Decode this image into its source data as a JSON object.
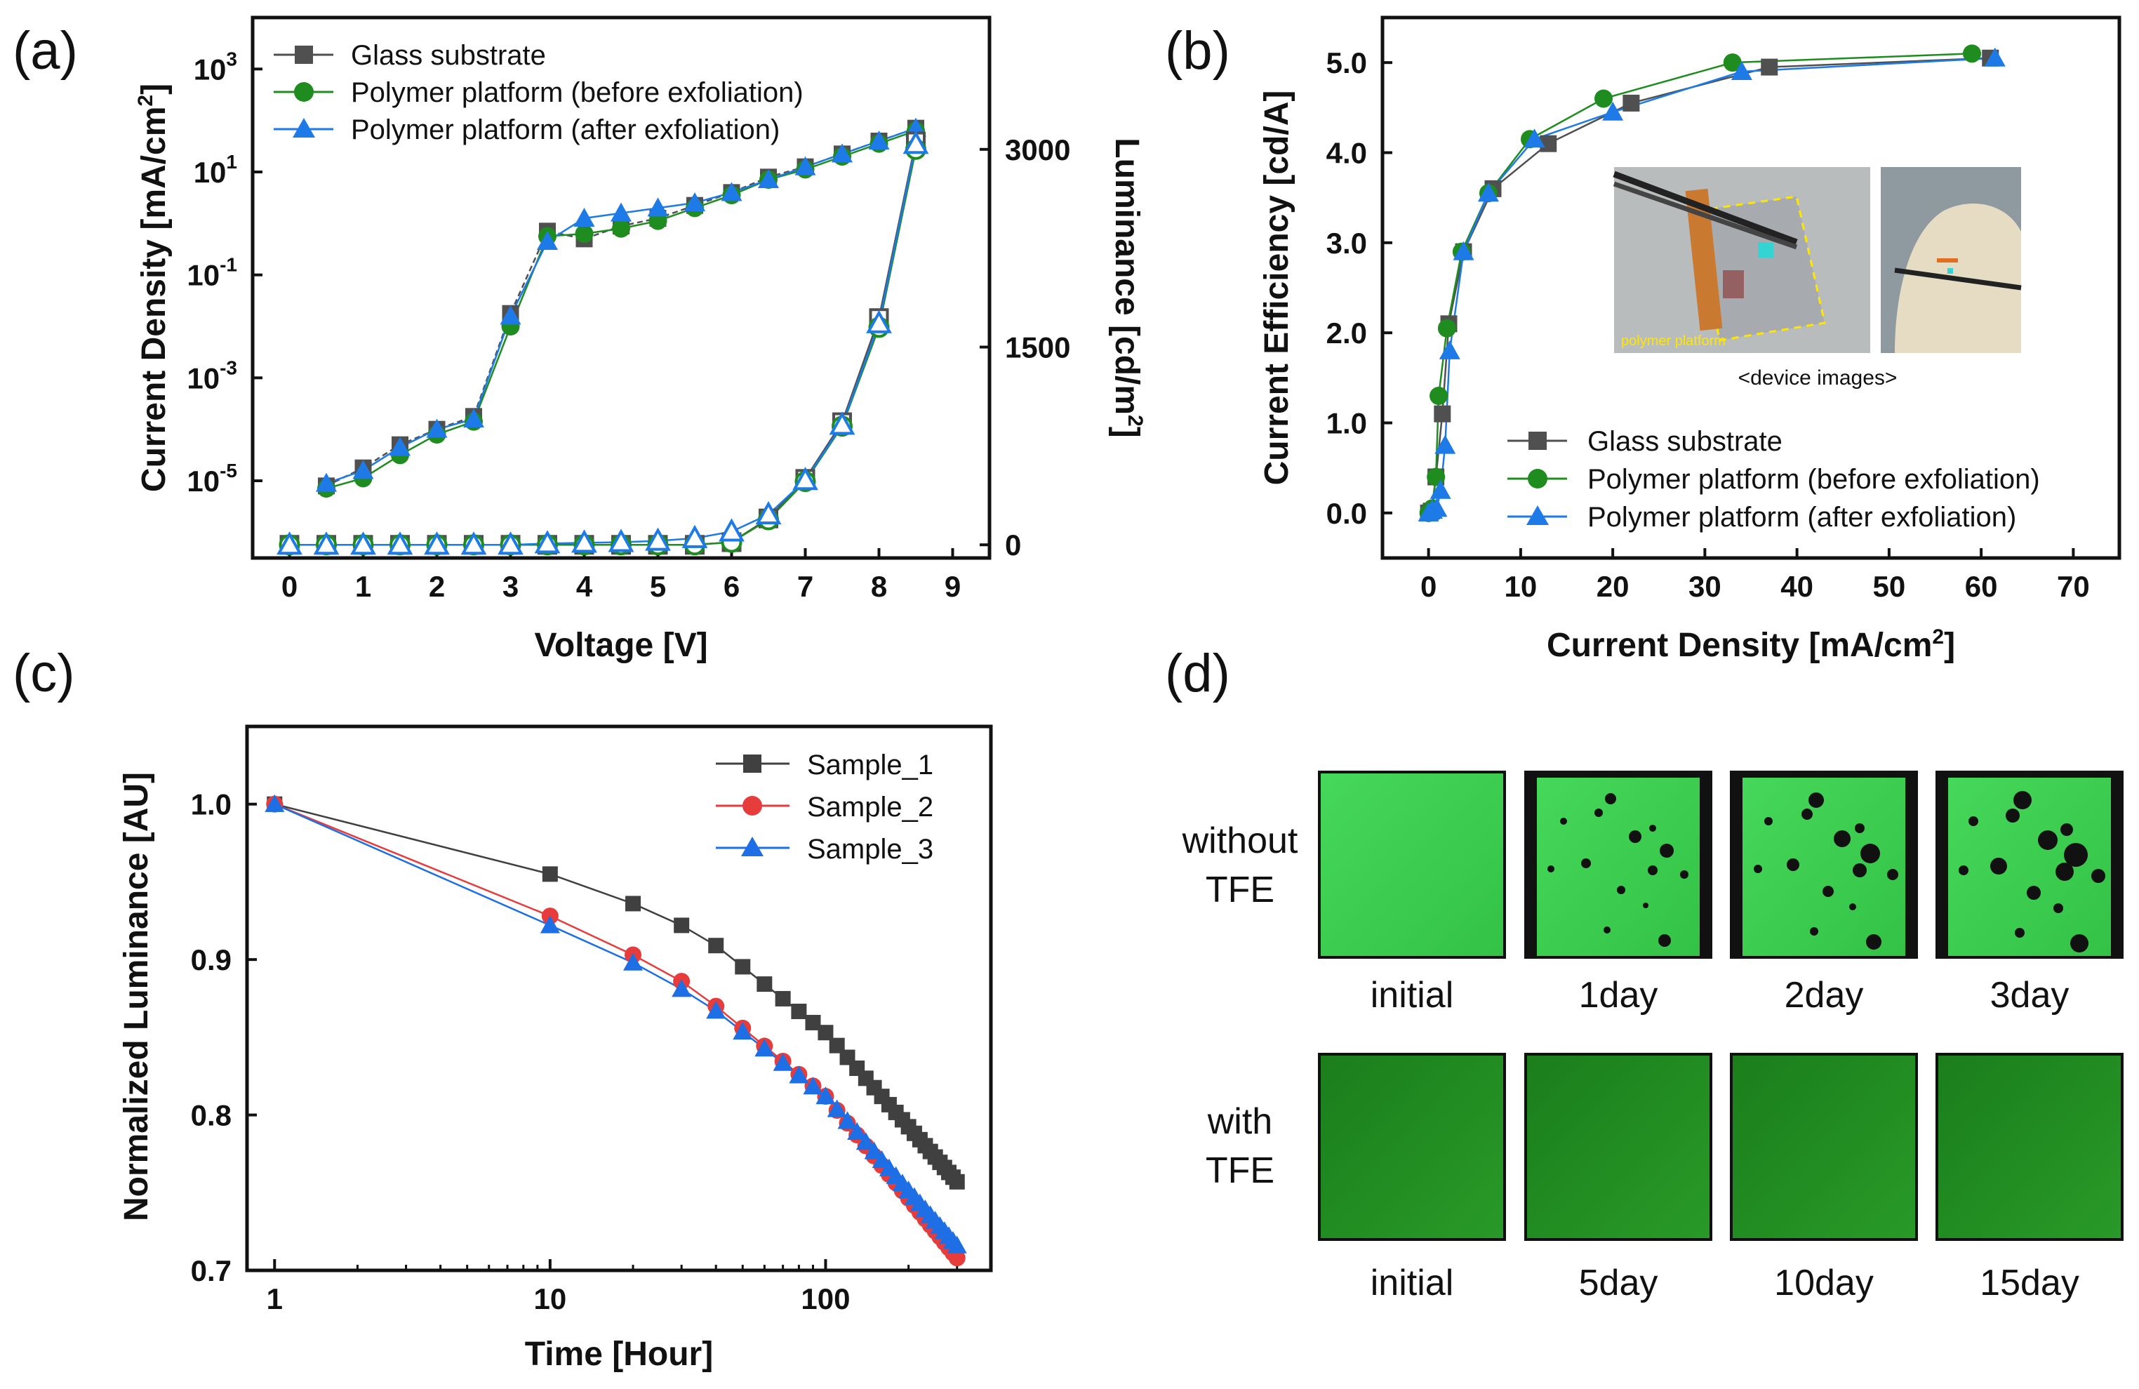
{
  "colors": {
    "glass": "#505050",
    "before": "#1e8c1e",
    "after": "#1e7ae6",
    "sample1": "#404040",
    "sample2": "#e63c3c",
    "sample3": "#1e6ee6",
    "green_bright": "#3ccf50",
    "green_dark": "#1f8a1f"
  },
  "panels": {
    "a_label": "(a)",
    "b_label": "(b)",
    "c_label": "(c)",
    "d_label": "(d)"
  },
  "chart_data": [
    {
      "id": "a",
      "type": "line",
      "title": "",
      "xlabel": "Voltage [V]",
      "ylabel": "Current Density [mA/cm²]",
      "y2label": "Luminance [cd/m²]",
      "xlim": [
        -0.5,
        9.5
      ],
      "x_ticks": [
        "0",
        "1",
        "2",
        "3",
        "4",
        "5",
        "6",
        "7",
        "8",
        "9"
      ],
      "y_log_ticks": [
        {
          "exp": 3,
          "label": "10",
          "sup": "3"
        },
        {
          "exp": 1,
          "label": "10",
          "sup": "1"
        },
        {
          "exp": -1,
          "label": "10",
          "sup": "-1"
        },
        {
          "exp": -3,
          "label": "10",
          "sup": "-3"
        },
        {
          "exp": -5,
          "label": "10",
          "sup": "-5"
        }
      ],
      "ylim_log10": [
        -6.5,
        4.0
      ],
      "y2_ticks": [
        "3000",
        "1500",
        "0"
      ],
      "y2lim": [
        -100,
        4000
      ],
      "legend": [
        "Glass substrate",
        "Polymer platform (before exfoliation)",
        "Polymer platform (after exfoliation)"
      ],
      "series_j": [
        {
          "name": "Glass substrate",
          "marker": "square",
          "x": [
            0.5,
            1,
            1.5,
            2,
            2.5,
            3,
            3.5,
            4,
            4.5,
            5,
            5.5,
            6,
            6.5,
            7,
            7.5,
            8,
            8.5
          ],
          "log10y": [
            -5.1,
            -4.75,
            -4.3,
            -4.0,
            -3.75,
            -1.75,
            -0.15,
            -0.3,
            -0.05,
            0.1,
            0.35,
            0.6,
            0.9,
            1.1,
            1.35,
            1.6,
            1.85
          ]
        },
        {
          "name": "Polymer platform (before exfoliation)",
          "marker": "circle",
          "x": [
            0.5,
            1,
            1.5,
            2,
            2.5,
            3,
            3.5,
            4,
            4.5,
            5,
            5.5,
            6,
            6.5,
            7,
            7.5,
            8,
            8.5
          ],
          "log10y": [
            -5.15,
            -4.95,
            -4.5,
            -4.1,
            -3.85,
            -2.0,
            -0.25,
            -0.2,
            -0.1,
            0.05,
            0.3,
            0.55,
            0.85,
            1.05,
            1.3,
            1.55,
            1.8
          ]
        },
        {
          "name": "Polymer platform (after exfoliation)",
          "marker": "triangle",
          "x": [
            0.5,
            1,
            1.5,
            2,
            2.5,
            3,
            3.5,
            4,
            4.5,
            5,
            5.5,
            6,
            6.5,
            7,
            7.5,
            8,
            8.5
          ],
          "log10y": [
            -5.05,
            -4.8,
            -4.35,
            -4.0,
            -3.8,
            -1.8,
            -0.35,
            0.1,
            0.2,
            0.3,
            0.4,
            0.6,
            0.85,
            1.1,
            1.35,
            1.6,
            1.85
          ]
        }
      ],
      "series_l": [
        {
          "name": "Glass substrate",
          "marker": "square",
          "x": [
            0,
            0.5,
            1,
            1.5,
            2,
            2.5,
            3,
            3.5,
            4,
            4.5,
            5,
            5.5,
            6,
            6.5,
            7,
            7.5,
            8,
            8.5
          ],
          "y": [
            0,
            0,
            0,
            0,
            0,
            0,
            0,
            0,
            0,
            0,
            0,
            0,
            20,
            200,
            500,
            930,
            1720,
            3060
          ]
        },
        {
          "name": "Polymer platform (before exfoliation)",
          "marker": "circle",
          "x": [
            0,
            0.5,
            1,
            1.5,
            2,
            2.5,
            3,
            3.5,
            4,
            4.5,
            5,
            5.5,
            6,
            6.5,
            7,
            7.5,
            8,
            8.5
          ],
          "y": [
            0,
            0,
            0,
            0,
            0,
            0,
            0,
            0,
            0,
            0,
            0,
            0,
            20,
            190,
            480,
            900,
            1650,
            3000
          ]
        },
        {
          "name": "Polymer platform (after exfoliation)",
          "marker": "triangle",
          "x": [
            0,
            0.5,
            1,
            1.5,
            2,
            2.5,
            3,
            3.5,
            4,
            4.5,
            5,
            5.5,
            6,
            6.5,
            7,
            7.5,
            8,
            8.5
          ],
          "y": [
            0,
            0,
            0,
            0,
            0,
            0,
            0,
            10,
            15,
            20,
            30,
            50,
            100,
            230,
            490,
            910,
            1680,
            3040
          ]
        }
      ]
    },
    {
      "id": "b",
      "type": "line",
      "title": "",
      "xlabel": "Current Density [mA/cm²]",
      "ylabel": "Current Efficiency [cd/A]",
      "xlim": [
        -5,
        75
      ],
      "ylim": [
        -0.5,
        5.5
      ],
      "x_ticks": [
        "0",
        "10",
        "20",
        "30",
        "40",
        "50",
        "60",
        "70"
      ],
      "y_ticks": [
        "0.0",
        "1.0",
        "2.0",
        "3.0",
        "4.0",
        "5.0"
      ],
      "legend": [
        "Glass substrate",
        "Polymer platform (before exfoliation)",
        "Polymer platform (after exfoliation)"
      ],
      "inset_caption": "<device images>",
      "inset_photo_label": "polymer platform",
      "series": [
        {
          "name": "Glass substrate",
          "marker": "square",
          "x": [
            0,
            0.3,
            0.8,
            1.5,
            2.2,
            3.8,
            7,
            13,
            22,
            37,
            61
          ],
          "y": [
            0,
            0.02,
            0.4,
            1.1,
            2.1,
            2.9,
            3.6,
            4.1,
            4.55,
            4.95,
            5.05
          ]
        },
        {
          "name": "Polymer platform (before exfoliation)",
          "marker": "circle",
          "x": [
            0,
            0.4,
            0.8,
            1.1,
            2.0,
            3.6,
            6.5,
            11,
            19,
            33,
            59
          ],
          "y": [
            0,
            0.05,
            0.4,
            1.3,
            2.05,
            2.9,
            3.55,
            4.15,
            4.6,
            5.0,
            5.1
          ]
        },
        {
          "name": "Polymer platform (after exfoliation)",
          "marker": "triangle",
          "x": [
            0,
            0.4,
            0.9,
            1.3,
            1.8,
            2.3,
            3.8,
            6.5,
            11.5,
            20,
            34,
            61.5
          ],
          "y": [
            0,
            0.03,
            0.05,
            0.25,
            0.75,
            1.8,
            2.9,
            3.55,
            4.15,
            4.45,
            4.9,
            5.05
          ]
        }
      ]
    },
    {
      "id": "c",
      "type": "line",
      "title": "",
      "xlabel": "Time [Hour]",
      "ylabel": "Normalized Luminance [AU]",
      "xlim_log10": [
        -0.1,
        2.6
      ],
      "ylim": [
        0.7,
        1.05
      ],
      "x_ticks": [
        "1",
        "10",
        "100"
      ],
      "y_ticks": [
        "0.7",
        "0.8",
        "0.9",
        "1.0"
      ],
      "legend": [
        "Sample_1",
        "Sample_2",
        "Sample_3"
      ],
      "series": [
        {
          "name": "Sample_1",
          "marker": "square",
          "t_start": 1,
          "t_end": 300,
          "anchors_t": [
            1,
            10,
            20,
            30,
            40,
            100,
            300
          ],
          "anchors_y": [
            1.0,
            0.955,
            0.936,
            0.922,
            0.909,
            0.853,
            0.757
          ]
        },
        {
          "name": "Sample_2",
          "marker": "circle",
          "t_start": 1,
          "t_end": 300,
          "anchors_t": [
            1,
            10,
            20,
            30,
            40,
            100,
            300
          ],
          "anchors_y": [
            1.0,
            0.928,
            0.903,
            0.886,
            0.87,
            0.812,
            0.708
          ]
        },
        {
          "name": "Sample_3",
          "marker": "triangle",
          "t_start": 1,
          "t_end": 300,
          "anchors_t": [
            1,
            10,
            20,
            30,
            40,
            100,
            300
          ],
          "anchors_y": [
            1.0,
            0.922,
            0.898,
            0.881,
            0.867,
            0.812,
            0.716
          ]
        }
      ]
    }
  ],
  "panel_d": {
    "row1_label_line1": "without",
    "row1_label_line2": "TFE",
    "row2_label_line1": "with",
    "row2_label_line2": "TFE",
    "row1_captions": [
      "initial",
      "1day",
      "2day",
      "3day"
    ],
    "row2_captions": [
      "initial",
      "5day",
      "10day",
      "15day"
    ]
  }
}
